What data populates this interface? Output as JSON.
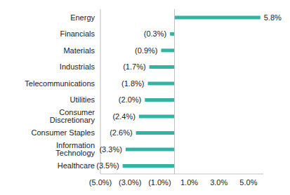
{
  "chart_data": {
    "type": "bar",
    "orientation": "horizontal",
    "categories": [
      "Energy",
      "Financials",
      "Materials",
      "Industrials",
      "Telecommunications",
      "Utilities",
      "Consumer Discretionary",
      "Consumer Staples",
      "Information Technology",
      "Healthcare"
    ],
    "values": [
      5.8,
      -0.3,
      -0.9,
      -1.7,
      -1.8,
      -2.0,
      -2.4,
      -2.6,
      -3.3,
      -3.5
    ],
    "value_labels": [
      "5.8%",
      "(0.3%)",
      "(0.9%)",
      "(1.7%)",
      "(1.8%)",
      "(2.0%)",
      "(2.4%)",
      "(2.6%)",
      "(3.3%)",
      "(3.5%)"
    ],
    "color": "#33b3a6",
    "xlim": [
      -5,
      6
    ],
    "xticks": [
      {
        "value": -5,
        "label": "(5.0%)"
      },
      {
        "value": -3,
        "label": "(3.0%)"
      },
      {
        "value": -1,
        "label": "(1.0%)"
      },
      {
        "value": 1,
        "label": "1.0%"
      },
      {
        "value": 3,
        "label": "3.0%"
      },
      {
        "value": 5,
        "label": "5.0%"
      }
    ],
    "grid": false,
    "data_labels": true
  }
}
